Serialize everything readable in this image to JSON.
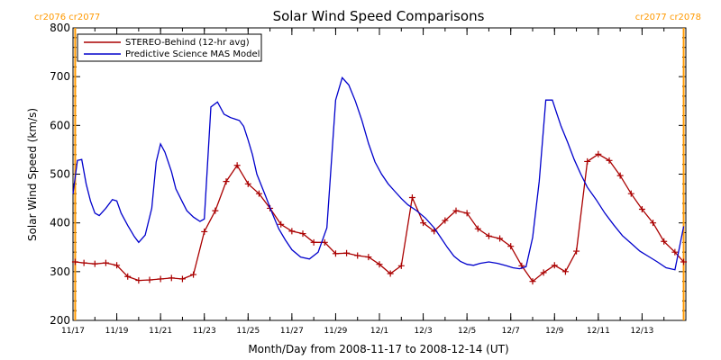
{
  "chart_data": {
    "type": "line",
    "title": "Solar Wind Speed Comparisons",
    "xlabel": "Month/Day from 2008-11-17 to 2008-12-14 (UT)",
    "ylabel": "Solar Wind Speed (km/s)",
    "xlim_days_from_11_17": [
      0,
      28
    ],
    "ylim": [
      200,
      800
    ],
    "x_ticks": [
      {
        "day": 0,
        "label": "11/17"
      },
      {
        "day": 2,
        "label": "11/19"
      },
      {
        "day": 4,
        "label": "11/21"
      },
      {
        "day": 6,
        "label": "11/23"
      },
      {
        "day": 8,
        "label": "11/25"
      },
      {
        "day": 10,
        "label": "11/27"
      },
      {
        "day": 12,
        "label": "11/29"
      },
      {
        "day": 14,
        "label": "12/1"
      },
      {
        "day": 16,
        "label": "12/3"
      },
      {
        "day": 18,
        "label": "12/5"
      },
      {
        "day": 20,
        "label": "12/7"
      },
      {
        "day": 22,
        "label": "12/9"
      },
      {
        "day": 24,
        "label": "12/11"
      },
      {
        "day": 26,
        "label": "12/13"
      }
    ],
    "y_ticks": [
      200,
      300,
      400,
      500,
      600,
      700,
      800
    ],
    "legend_position": "top-left",
    "carrington_markers": [
      {
        "day": 0.1,
        "labels": [
          "cr2076",
          "cr2077"
        ],
        "color": "#FF9900"
      },
      {
        "day": 27.9,
        "labels": [
          "cr2077",
          "cr2078"
        ],
        "color": "#FF9900"
      }
    ],
    "series": [
      {
        "name": "STEREO-Behind (12-hr avg)",
        "color": "#AA0000",
        "markers": "plus",
        "x": [
          0.1,
          0.5,
          1.0,
          1.5,
          2.0,
          2.5,
          3.0,
          3.5,
          4.0,
          4.5,
          5.0,
          5.5,
          6.0,
          6.5,
          7.0,
          7.5,
          8.0,
          8.5,
          9.0,
          9.5,
          10.0,
          10.5,
          11.0,
          11.5,
          12.0,
          12.5,
          13.0,
          13.5,
          14.0,
          14.5,
          15.0,
          15.5,
          16.0,
          16.5,
          17.0,
          17.5,
          18.0,
          18.5,
          19.0,
          19.5,
          20.0,
          20.5,
          21.0,
          21.5,
          22.0,
          22.5,
          23.0,
          23.5,
          24.0,
          24.5,
          25.0,
          25.5,
          26.0,
          26.5,
          27.0,
          27.5,
          27.9
        ],
        "y": [
          320,
          318,
          316,
          318,
          313,
          290,
          282,
          283,
          285,
          287,
          285,
          294,
          382,
          425,
          485,
          518,
          480,
          460,
          430,
          397,
          383,
          378,
          360,
          360,
          337,
          338,
          333,
          330,
          315,
          296,
          312,
          452,
          400,
          383,
          405,
          425,
          420,
          388,
          373,
          368,
          352,
          312,
          280,
          298,
          313,
          300,
          342,
          526,
          541,
          528,
          497,
          460,
          428,
          400,
          362,
          340,
          320
        ]
      },
      {
        "name": "Predictive Science MAS Model",
        "color": "#0000CC",
        "markers": "none",
        "x": [
          0.0,
          0.2,
          0.4,
          0.6,
          0.8,
          1.0,
          1.2,
          1.5,
          1.8,
          2.0,
          2.2,
          2.5,
          2.8,
          3.0,
          3.3,
          3.6,
          3.8,
          4.0,
          4.2,
          4.5,
          4.7,
          5.0,
          5.2,
          5.5,
          5.8,
          6.0,
          6.3,
          6.6,
          6.9,
          7.2,
          7.4,
          7.6,
          7.8,
          8.0,
          8.2,
          8.4,
          8.8,
          9.1,
          9.4,
          9.7,
          10.0,
          10.4,
          10.8,
          11.2,
          11.6,
          12.0,
          12.3,
          12.6,
          12.9,
          13.2,
          13.5,
          13.8,
          14.1,
          14.4,
          14.7,
          15.0,
          15.3,
          15.7,
          16.1,
          16.5,
          16.8,
          17.1,
          17.4,
          17.7,
          18.0,
          18.3,
          18.6,
          19.0,
          19.4,
          19.8,
          20.1,
          20.4,
          20.7,
          21.0,
          21.3,
          21.6,
          21.9,
          22.1,
          22.3,
          22.6,
          22.9,
          23.2,
          23.5,
          23.9,
          24.3,
          24.7,
          25.1,
          25.5,
          25.9,
          26.3,
          26.7,
          27.1,
          27.5,
          27.9
        ],
        "y": [
          460,
          528,
          530,
          480,
          445,
          420,
          415,
          430,
          448,
          445,
          420,
          395,
          372,
          360,
          375,
          430,
          525,
          562,
          545,
          505,
          470,
          443,
          425,
          412,
          403,
          408,
          638,
          648,
          623,
          616,
          613,
          610,
          598,
          570,
          540,
          500,
          455,
          420,
          388,
          365,
          345,
          330,
          326,
          340,
          390,
          652,
          698,
          683,
          650,
          610,
          563,
          525,
          500,
          480,
          465,
          450,
          437,
          425,
          410,
          390,
          370,
          350,
          332,
          321,
          315,
          313,
          317,
          320,
          317,
          312,
          308,
          306,
          310,
          370,
          485,
          652,
          652,
          625,
          598,
          565,
          530,
          500,
          473,
          448,
          420,
          396,
          374,
          358,
          342,
          331,
          320,
          308,
          304,
          393
        ]
      }
    ]
  }
}
